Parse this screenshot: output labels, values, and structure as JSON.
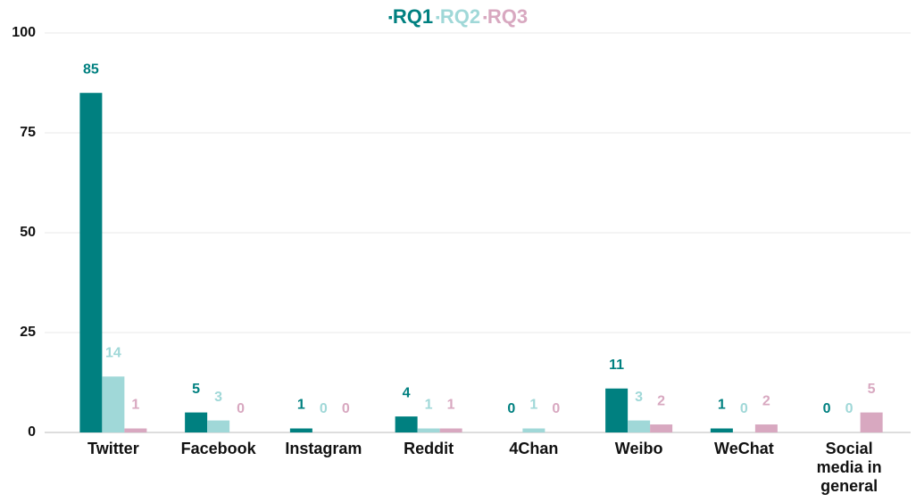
{
  "chart_data": {
    "type": "bar",
    "categories": [
      "Twitter",
      "Facebook",
      "Instagram",
      "Reddit",
      "4Chan",
      "Weibo",
      "WeChat",
      "Social media in general"
    ],
    "series": [
      {
        "name": "RQ1",
        "color": "#008080",
        "values": [
          85,
          5,
          1,
          4,
          0,
          11,
          1,
          0
        ]
      },
      {
        "name": "RQ2",
        "color": "#a0d8d8",
        "values": [
          14,
          3,
          0,
          1,
          1,
          3,
          0,
          0
        ]
      },
      {
        "name": "RQ3",
        "color": "#d8a8c0",
        "values": [
          1,
          0,
          0,
          1,
          0,
          2,
          2,
          5
        ]
      }
    ],
    "ylim": [
      0,
      100
    ],
    "yticks": [
      0,
      25,
      50,
      75,
      100
    ],
    "grid": true,
    "legend": "top"
  }
}
